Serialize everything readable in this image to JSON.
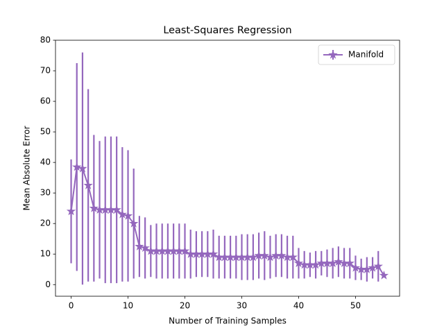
{
  "chart_data": {
    "type": "line",
    "title": "Least-Squares Regression",
    "xlabel": "Number of Training Samples",
    "ylabel": "Mean Absolute Error",
    "x": [
      0,
      1,
      2,
      3,
      4,
      5,
      6,
      7,
      8,
      9,
      10,
      11,
      12,
      13,
      14,
      15,
      16,
      17,
      18,
      19,
      20,
      21,
      22,
      23,
      24,
      25,
      26,
      27,
      28,
      29,
      30,
      31,
      32,
      33,
      34,
      35,
      36,
      37,
      38,
      39,
      40,
      41,
      42,
      43,
      44,
      45,
      46,
      47,
      48,
      49,
      50,
      51,
      52,
      53,
      54,
      55
    ],
    "series": [
      {
        "name": "Manifold",
        "color": "#9467bd",
        "marker": "star",
        "values": [
          24,
          38.5,
          38,
          32.5,
          25,
          24.5,
          24.5,
          24.5,
          24.5,
          23,
          22.5,
          20,
          12.5,
          12,
          11,
          11,
          11,
          11,
          11,
          11,
          11,
          10,
          10,
          10,
          10,
          10,
          9,
          9,
          9,
          9,
          9,
          9,
          9,
          9.5,
          9.5,
          9,
          9.5,
          9.5,
          9,
          9,
          7,
          6.5,
          6.5,
          6.5,
          7,
          7,
          7,
          7.5,
          7,
          7,
          5.5,
          5,
          5,
          5.5,
          6,
          3
        ],
        "errors": [
          17,
          34,
          38,
          31.5,
          24,
          22.5,
          24,
          24,
          24,
          22,
          21.5,
          18,
          10,
          10,
          8.5,
          9,
          9,
          9,
          9,
          9,
          9,
          8,
          7.5,
          7.5,
          7.5,
          8,
          7,
          7,
          7,
          7,
          7.5,
          7.5,
          7.5,
          7.5,
          8,
          7,
          7,
          7,
          7,
          7,
          5,
          4.5,
          4,
          4.5,
          4,
          4.5,
          5,
          5,
          5,
          5,
          4,
          3.5,
          4,
          3.5,
          5,
          0.5
        ]
      }
    ],
    "xlim": [
      -2.75,
      57.75
    ],
    "xticks": [
      0,
      10,
      20,
      30,
      40,
      50
    ],
    "ylim": [
      -3.8,
      80
    ],
    "yticks": [
      0,
      10,
      20,
      30,
      40,
      50,
      60,
      70,
      80
    ],
    "legend": "upper right"
  }
}
